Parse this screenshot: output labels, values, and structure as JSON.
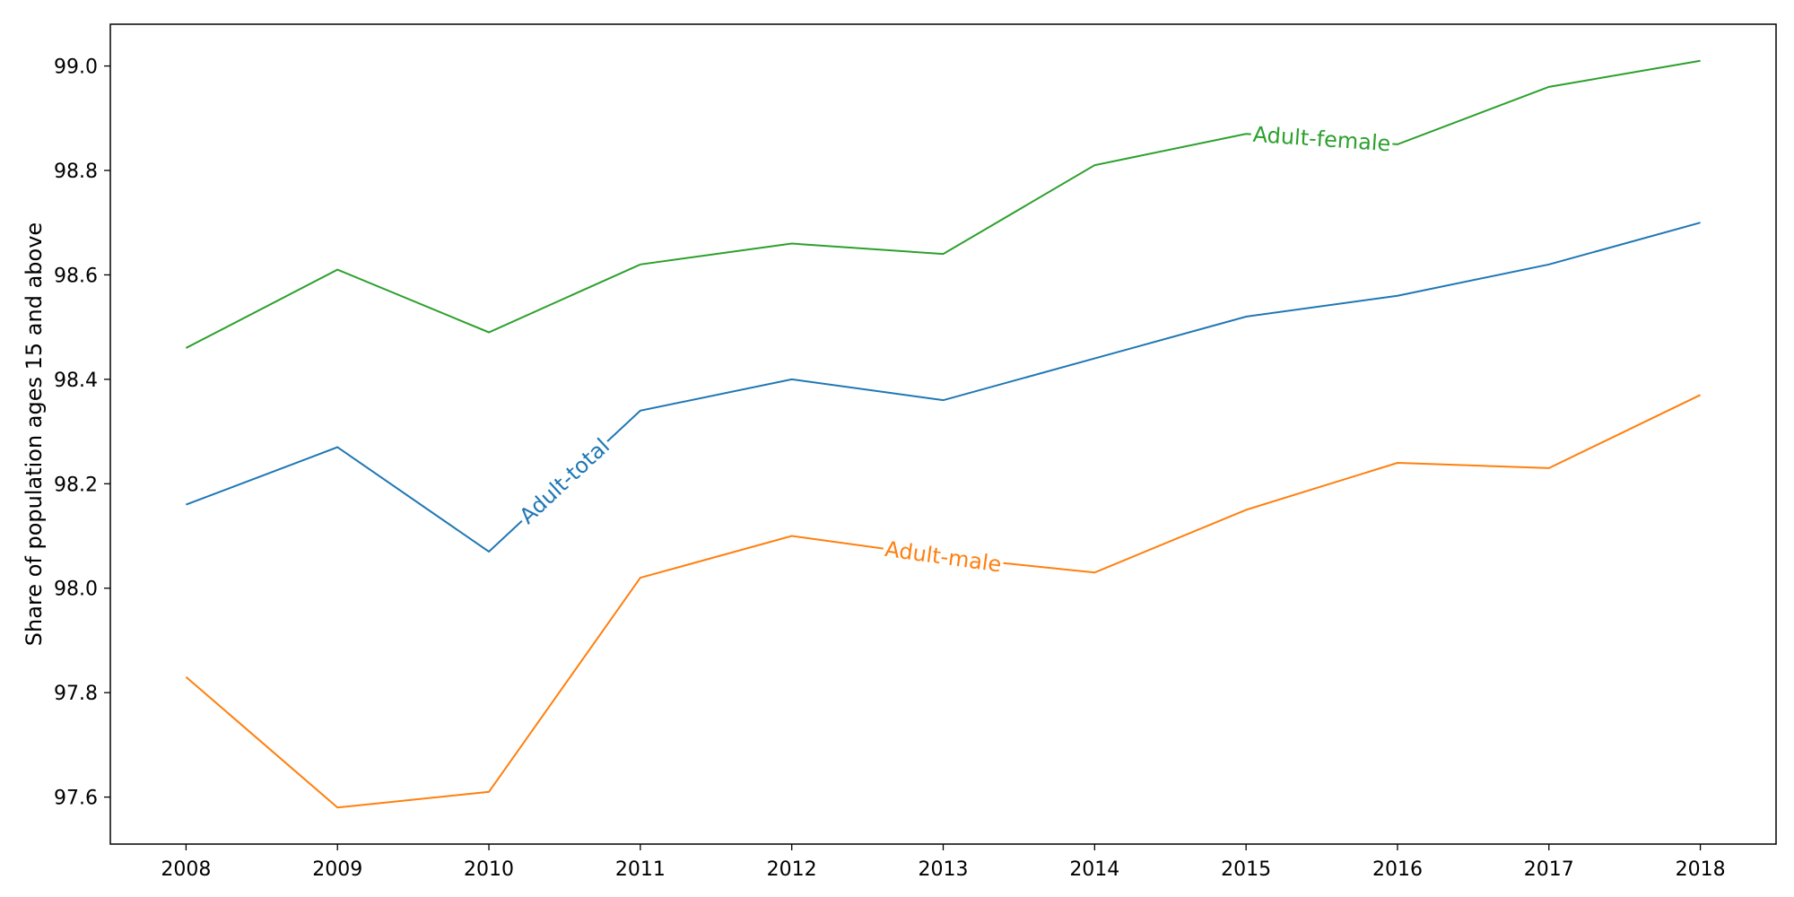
{
  "chart_data": {
    "type": "line",
    "title": "",
    "xlabel": "",
    "ylabel": "Share of population ages 15 and above",
    "x": [
      2008,
      2009,
      2010,
      2011,
      2012,
      2013,
      2014,
      2015,
      2016,
      2017,
      2018
    ],
    "x_tick_labels": [
      "2008",
      "2009",
      "2010",
      "2011",
      "2012",
      "2013",
      "2014",
      "2015",
      "2016",
      "2017",
      "2018"
    ],
    "xlim": [
      2007.5,
      2018.5
    ],
    "ylim": [
      97.51,
      99.08
    ],
    "y_ticks": [
      97.6,
      97.8,
      98.0,
      98.2,
      98.4,
      98.6,
      98.8,
      99.0
    ],
    "y_tick_labels": [
      "97.6",
      "97.8",
      "98.0",
      "98.2",
      "98.4",
      "98.6",
      "98.8",
      "99.0"
    ],
    "grid": false,
    "legend": "inline labels on lines",
    "series": [
      {
        "name": "Adult-total",
        "color": "#1f77b4",
        "values": [
          98.16,
          98.27,
          98.07,
          98.34,
          98.4,
          98.36,
          98.44,
          98.52,
          98.56,
          98.62,
          98.7
        ],
        "label_at_x": 2010.5
      },
      {
        "name": "Adult-male",
        "color": "#ff7f0e",
        "values": [
          97.83,
          97.58,
          97.61,
          98.02,
          98.1,
          98.06,
          98.03,
          98.15,
          98.24,
          98.23,
          98.37
        ],
        "label_at_x": 2013.0
      },
      {
        "name": "Adult-female",
        "color": "#2ca02c",
        "values": [
          98.46,
          98.61,
          98.49,
          98.62,
          98.66,
          98.64,
          98.81,
          98.87,
          98.85,
          98.96,
          99.01
        ],
        "label_at_x": 2015.5
      }
    ]
  }
}
